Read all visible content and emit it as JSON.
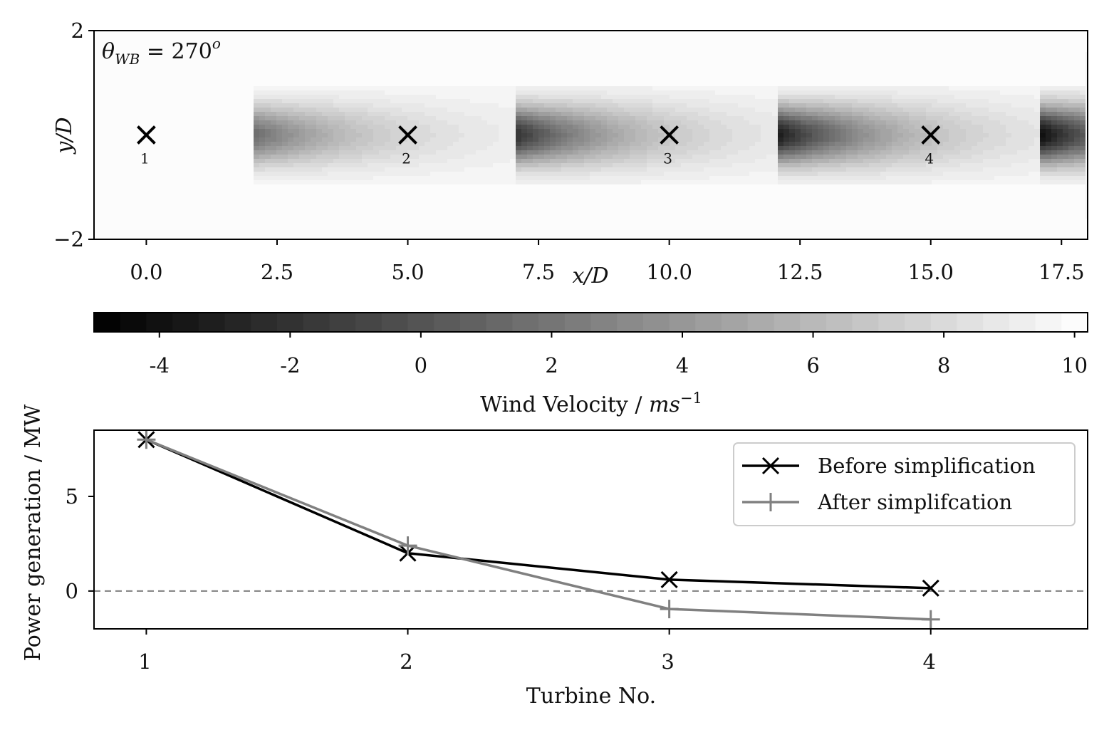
{
  "chart_data": [
    {
      "type": "heatmap",
      "title": "",
      "annotation": "θWB = 270°",
      "annotation_parts": {
        "symbol": "θ",
        "sub": "WB",
        "eq": " = 270",
        "sup": "o"
      },
      "xlabel": "x/D",
      "ylabel": "y/D",
      "xlim": [
        -1.0,
        18.0
      ],
      "ylim": [
        -2,
        2
      ],
      "xticks": [
        0.0,
        2.5,
        5.0,
        7.5,
        10.0,
        12.5,
        15.0,
        17.5
      ],
      "xtick_labels": [
        "0.0",
        "2.5",
        "5.0",
        "7.5",
        "10.0",
        "12.5",
        "15.0",
        "17.5"
      ],
      "yticks": [
        2,
        -2
      ],
      "ytick_labels": [
        "2",
        "−2"
      ],
      "free_stream_velocity": 10,
      "turbines": [
        {
          "label": "1",
          "x": 0.0,
          "y": 0.0
        },
        {
          "label": "2",
          "x": 5.0,
          "y": 0.0
        },
        {
          "label": "3",
          "x": 10.0,
          "y": 0.0
        },
        {
          "label": "4",
          "x": 15.0,
          "y": 0.0
        }
      ],
      "wake_segments": [
        {
          "x_start": 2.07,
          "x_end": 7.07,
          "min_velocity": 1.5
        },
        {
          "x_start": 7.07,
          "x_end": 12.07,
          "min_velocity": -2.0
        },
        {
          "x_start": 12.07,
          "x_end": 17.07,
          "min_velocity": -3.5
        },
        {
          "x_start": 17.07,
          "x_end": 18.0,
          "min_velocity": -4.5
        }
      ],
      "colorbar": {
        "label_text": "Wind Velocity / ",
        "label_unit": "ms",
        "label_sup": "−1",
        "range": [
          -5,
          10.2
        ],
        "ticks": [
          -4,
          -2,
          0,
          2,
          4,
          6,
          8,
          10
        ],
        "tick_labels": [
          "-4",
          "-2",
          "0",
          "2",
          "4",
          "6",
          "8",
          "10"
        ],
        "colormap": "gray"
      }
    },
    {
      "type": "line",
      "title": "",
      "xlabel": "Turbine No.",
      "ylabel": "Power generation / MW",
      "x": [
        1,
        2,
        3,
        4
      ],
      "xtick_labels": [
        "1",
        "2",
        "3",
        "4"
      ],
      "xlim": [
        0.8,
        4.6
      ],
      "ylim": [
        -2.0,
        8.5
      ],
      "yticks": [
        0,
        5
      ],
      "ytick_labels": [
        "0",
        "5"
      ],
      "reference_line": {
        "y": 0,
        "style": "dashed",
        "color": "#808080"
      },
      "legend_position": "top-right",
      "series": [
        {
          "name": "Before simplification",
          "values": [
            8.0,
            2.0,
            0.6,
            0.15
          ],
          "color": "#000000",
          "marker": "x"
        },
        {
          "name": "After simplifcation",
          "values": [
            8.0,
            2.4,
            -0.95,
            -1.5
          ],
          "color": "#808080",
          "marker": "+"
        }
      ]
    }
  ]
}
